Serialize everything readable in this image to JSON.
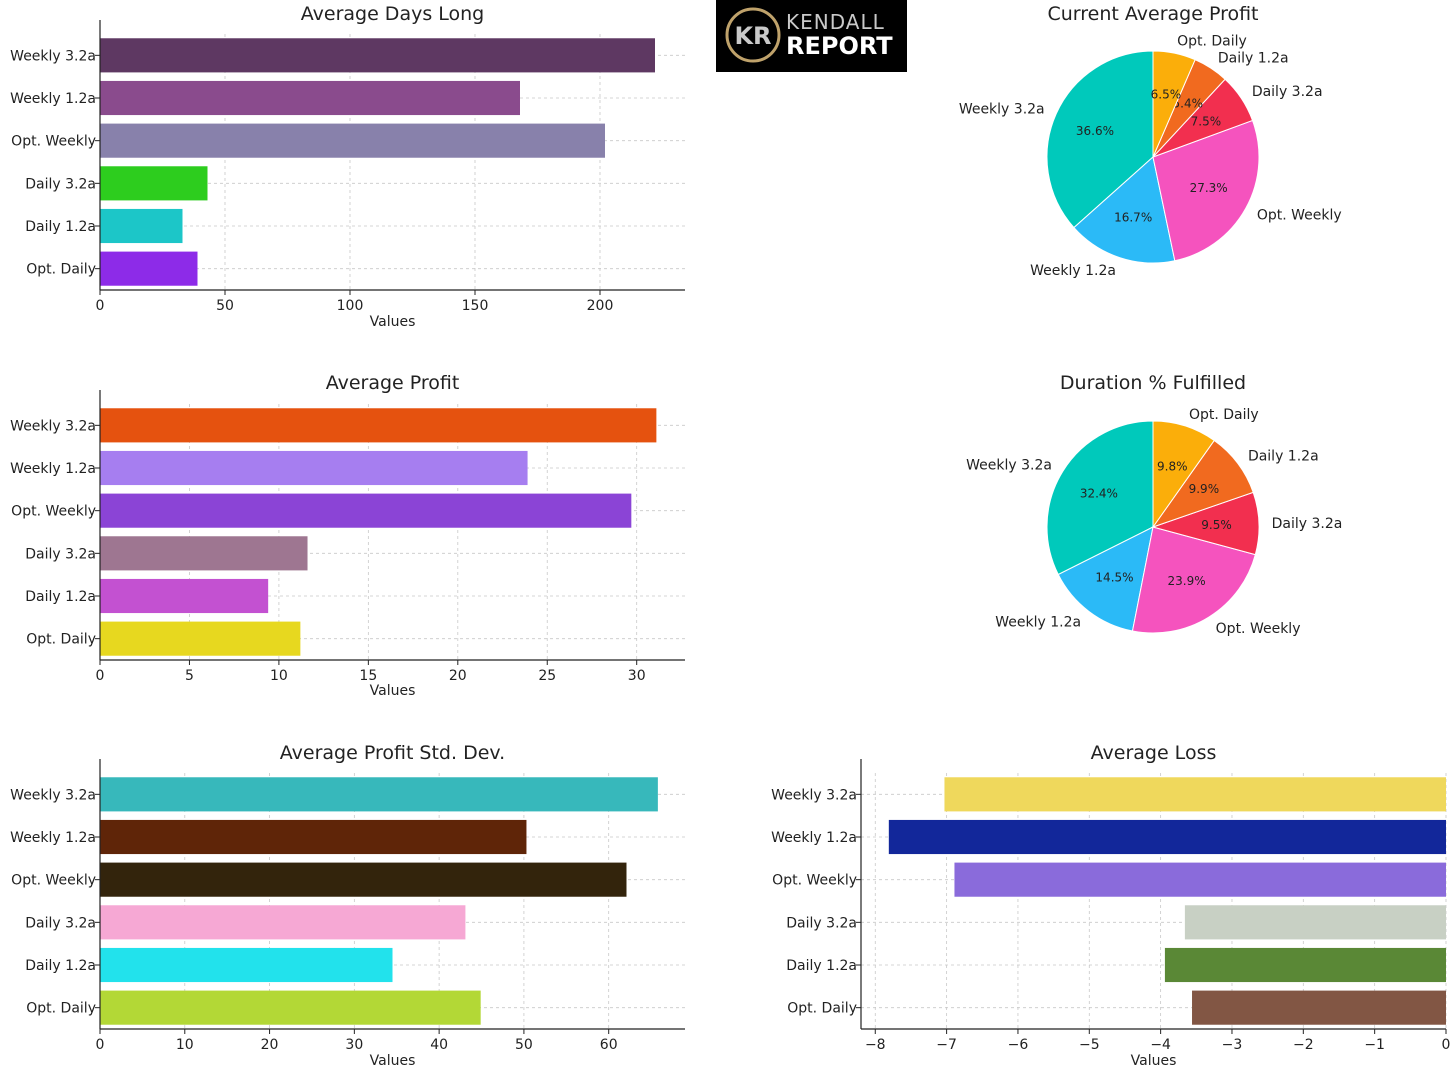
{
  "logo": {
    "line1": "KENDALL",
    "line2": "REPORT",
    "monogram": "KR"
  },
  "chart_data": [
    {
      "id": "days_long",
      "type": "bar",
      "orientation": "horizontal",
      "title": "Average Days Long",
      "xlabel": "Values",
      "categories": [
        "Weekly 3.2a",
        "Weekly 1.2a",
        "Opt. Weekly",
        "Daily 3.2a",
        "Daily 1.2a",
        "Opt. Daily"
      ],
      "values": [
        222,
        168,
        202,
        43,
        33,
        39
      ],
      "colors": [
        "#5e3862",
        "#8a4b8d",
        "#8881ab",
        "#2dcd1e",
        "#1cc6c8",
        "#8d2be8"
      ],
      "xlim": [
        0,
        234
      ],
      "ticks": [
        0,
        50,
        100,
        150,
        200
      ],
      "tick_labels": [
        "0",
        "50",
        "100",
        "150",
        "200"
      ]
    },
    {
      "id": "avg_profit",
      "type": "bar",
      "orientation": "horizontal",
      "title": "Average Profit",
      "xlabel": "Values",
      "categories": [
        "Weekly 3.2a",
        "Weekly 1.2a",
        "Opt. Weekly",
        "Daily 3.2a",
        "Daily 1.2a",
        "Opt. Daily"
      ],
      "values": [
        31.1,
        23.9,
        29.7,
        11.6,
        9.4,
        11.2
      ],
      "colors": [
        "#e5520f",
        "#a67ef0",
        "#8b44d6",
        "#9e7691",
        "#c351d1",
        "#e7d81f"
      ],
      "xlim": [
        0,
        32.7
      ],
      "ticks": [
        0,
        5,
        10,
        15,
        20,
        25,
        30
      ],
      "tick_labels": [
        "0",
        "5",
        "10",
        "15",
        "20",
        "25",
        "30"
      ]
    },
    {
      "id": "profit_std",
      "type": "bar",
      "orientation": "horizontal",
      "title": "Average Profit Std. Dev.",
      "xlabel": "Values",
      "categories": [
        "Weekly 3.2a",
        "Weekly 1.2a",
        "Opt. Weekly",
        "Daily 3.2a",
        "Daily 1.2a",
        "Opt. Daily"
      ],
      "values": [
        65.8,
        50.3,
        62.1,
        43.1,
        34.5,
        44.9
      ],
      "colors": [
        "#37b8bb",
        "#5f2508",
        "#33240c",
        "#f6a8d4",
        "#22e2ec",
        "#b3d836"
      ],
      "xlim": [
        0,
        69
      ],
      "ticks": [
        0,
        10,
        20,
        30,
        40,
        50,
        60
      ],
      "tick_labels": [
        "0",
        "10",
        "20",
        "30",
        "40",
        "50",
        "60"
      ]
    },
    {
      "id": "avg_loss",
      "type": "bar",
      "orientation": "horizontal",
      "title": "Average Loss",
      "xlabel": "Values",
      "categories": [
        "Weekly 3.2a",
        "Weekly 1.2a",
        "Opt. Weekly",
        "Daily 3.2a",
        "Daily 1.2a",
        "Opt. Daily"
      ],
      "values": [
        -7.03,
        -7.81,
        -6.89,
        -3.66,
        -3.94,
        -3.56
      ],
      "colors": [
        "#efd85c",
        "#12279a",
        "#8a6bdb",
        "#c8d0c4",
        "#5a8836",
        "#825644"
      ],
      "xlim": [
        -8.2,
        0
      ],
      "ticks": [
        -8,
        -7,
        -6,
        -5,
        -4,
        -3,
        -2,
        -1,
        0
      ],
      "tick_labels": [
        "−8",
        "−7",
        "−6",
        "−5",
        "−4",
        "−3",
        "−2",
        "−1",
        "0"
      ]
    },
    {
      "id": "current_avg_profit",
      "type": "pie",
      "title": "Current Average Profit",
      "labels": [
        "Weekly 3.2a",
        "Weekly 1.2a",
        "Opt. Weekly",
        "Daily 3.2a",
        "Daily 1.2a",
        "Opt. Daily"
      ],
      "values": [
        36.6,
        16.7,
        27.3,
        7.5,
        5.4,
        6.5
      ],
      "pct_labels": [
        "36.6%",
        "16.7%",
        "27.3%",
        "7.5%",
        "5.4%",
        "6.5%"
      ],
      "colors": [
        "#00c9bb",
        "#2bbaf7",
        "#f553be",
        "#f22f4f",
        "#f16a1f",
        "#fbae0a"
      ]
    },
    {
      "id": "duration_fulfilled",
      "type": "pie",
      "title": "Duration % Fulfilled",
      "labels": [
        "Weekly 3.2a",
        "Weekly 1.2a",
        "Opt. Weekly",
        "Daily 3.2a",
        "Daily 1.2a",
        "Opt. Daily"
      ],
      "values": [
        32.4,
        14.5,
        23.9,
        9.5,
        9.9,
        9.8
      ],
      "pct_labels": [
        "32.4%",
        "14.5%",
        "23.9%",
        "9.5%",
        "9.9%",
        "9.8%"
      ],
      "colors": [
        "#00c9bb",
        "#2bbaf7",
        "#f553be",
        "#f22f4f",
        "#f16a1f",
        "#fbae0a"
      ]
    }
  ]
}
